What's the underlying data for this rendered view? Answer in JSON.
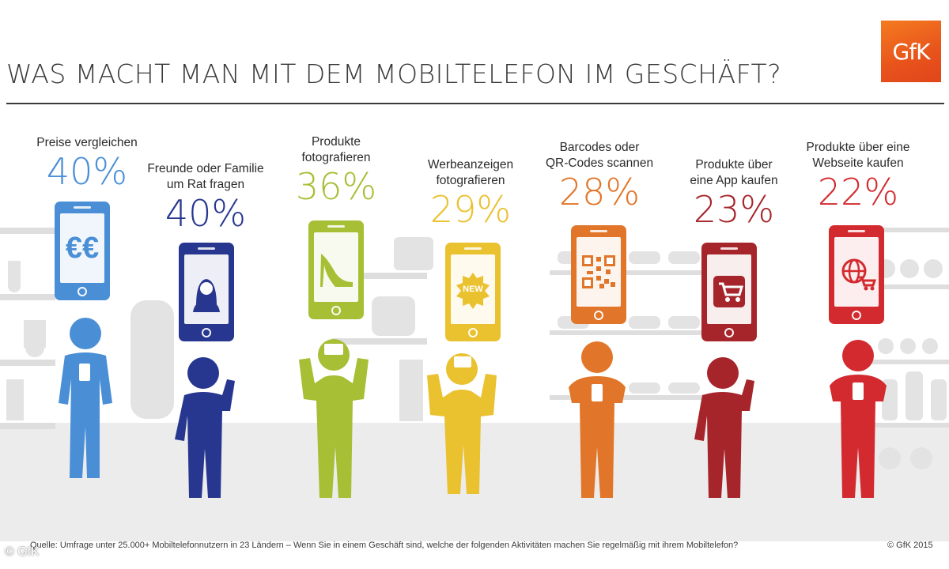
{
  "title": "WAS MACHT MAN MIT DEM MOBILTELEFON IM GESCHÄFT?",
  "logo_text": "GfK",
  "items": [
    {
      "label_lines": [
        "Preise vergleichen"
      ],
      "percent": "40%",
      "color": "#4a8fd6",
      "icon": "euro-icon",
      "icon_text": "€€"
    },
    {
      "label_lines": [
        "Freunde oder Familie",
        "um Rat fragen"
      ],
      "percent": "40%",
      "color": "#27378f",
      "icon": "woman-avatar-icon"
    },
    {
      "label_lines": [
        "Produkte",
        "fotografieren"
      ],
      "percent": "36%",
      "color": "#a6bf35",
      "icon": "high-heel-shoe-icon"
    },
    {
      "label_lines": [
        "Werbeanzeigen",
        "fotografieren"
      ],
      "percent": "29%",
      "color": "#eac12f",
      "icon": "new-badge-icon",
      "icon_text": "NEW"
    },
    {
      "label_lines": [
        "Barcodes oder",
        "QR-Codes scannen"
      ],
      "percent": "28%",
      "color": "#e1762a",
      "icon": "qr-code-icon"
    },
    {
      "label_lines": [
        "Produkte über",
        "eine App kaufen"
      ],
      "percent": "23%",
      "color": "#a6252b",
      "icon": "cart-app-icon"
    },
    {
      "label_lines": [
        "Produkte über eine",
        "Webseite kaufen"
      ],
      "percent": "22%",
      "color": "#d32a2f",
      "icon": "web-cart-icon"
    }
  ],
  "source_text": "Quelle: Umfrage unter 25.000+ Mobiltelefonnutzern in 23 Ländern – Wenn Sie in einem Geschäft sind, welche der folgenden Aktivitäten machen Sie regelmäßig mit ihrem Mobiltelefon?",
  "copyright": "© GfK 2015",
  "watermark": "© GfK"
}
